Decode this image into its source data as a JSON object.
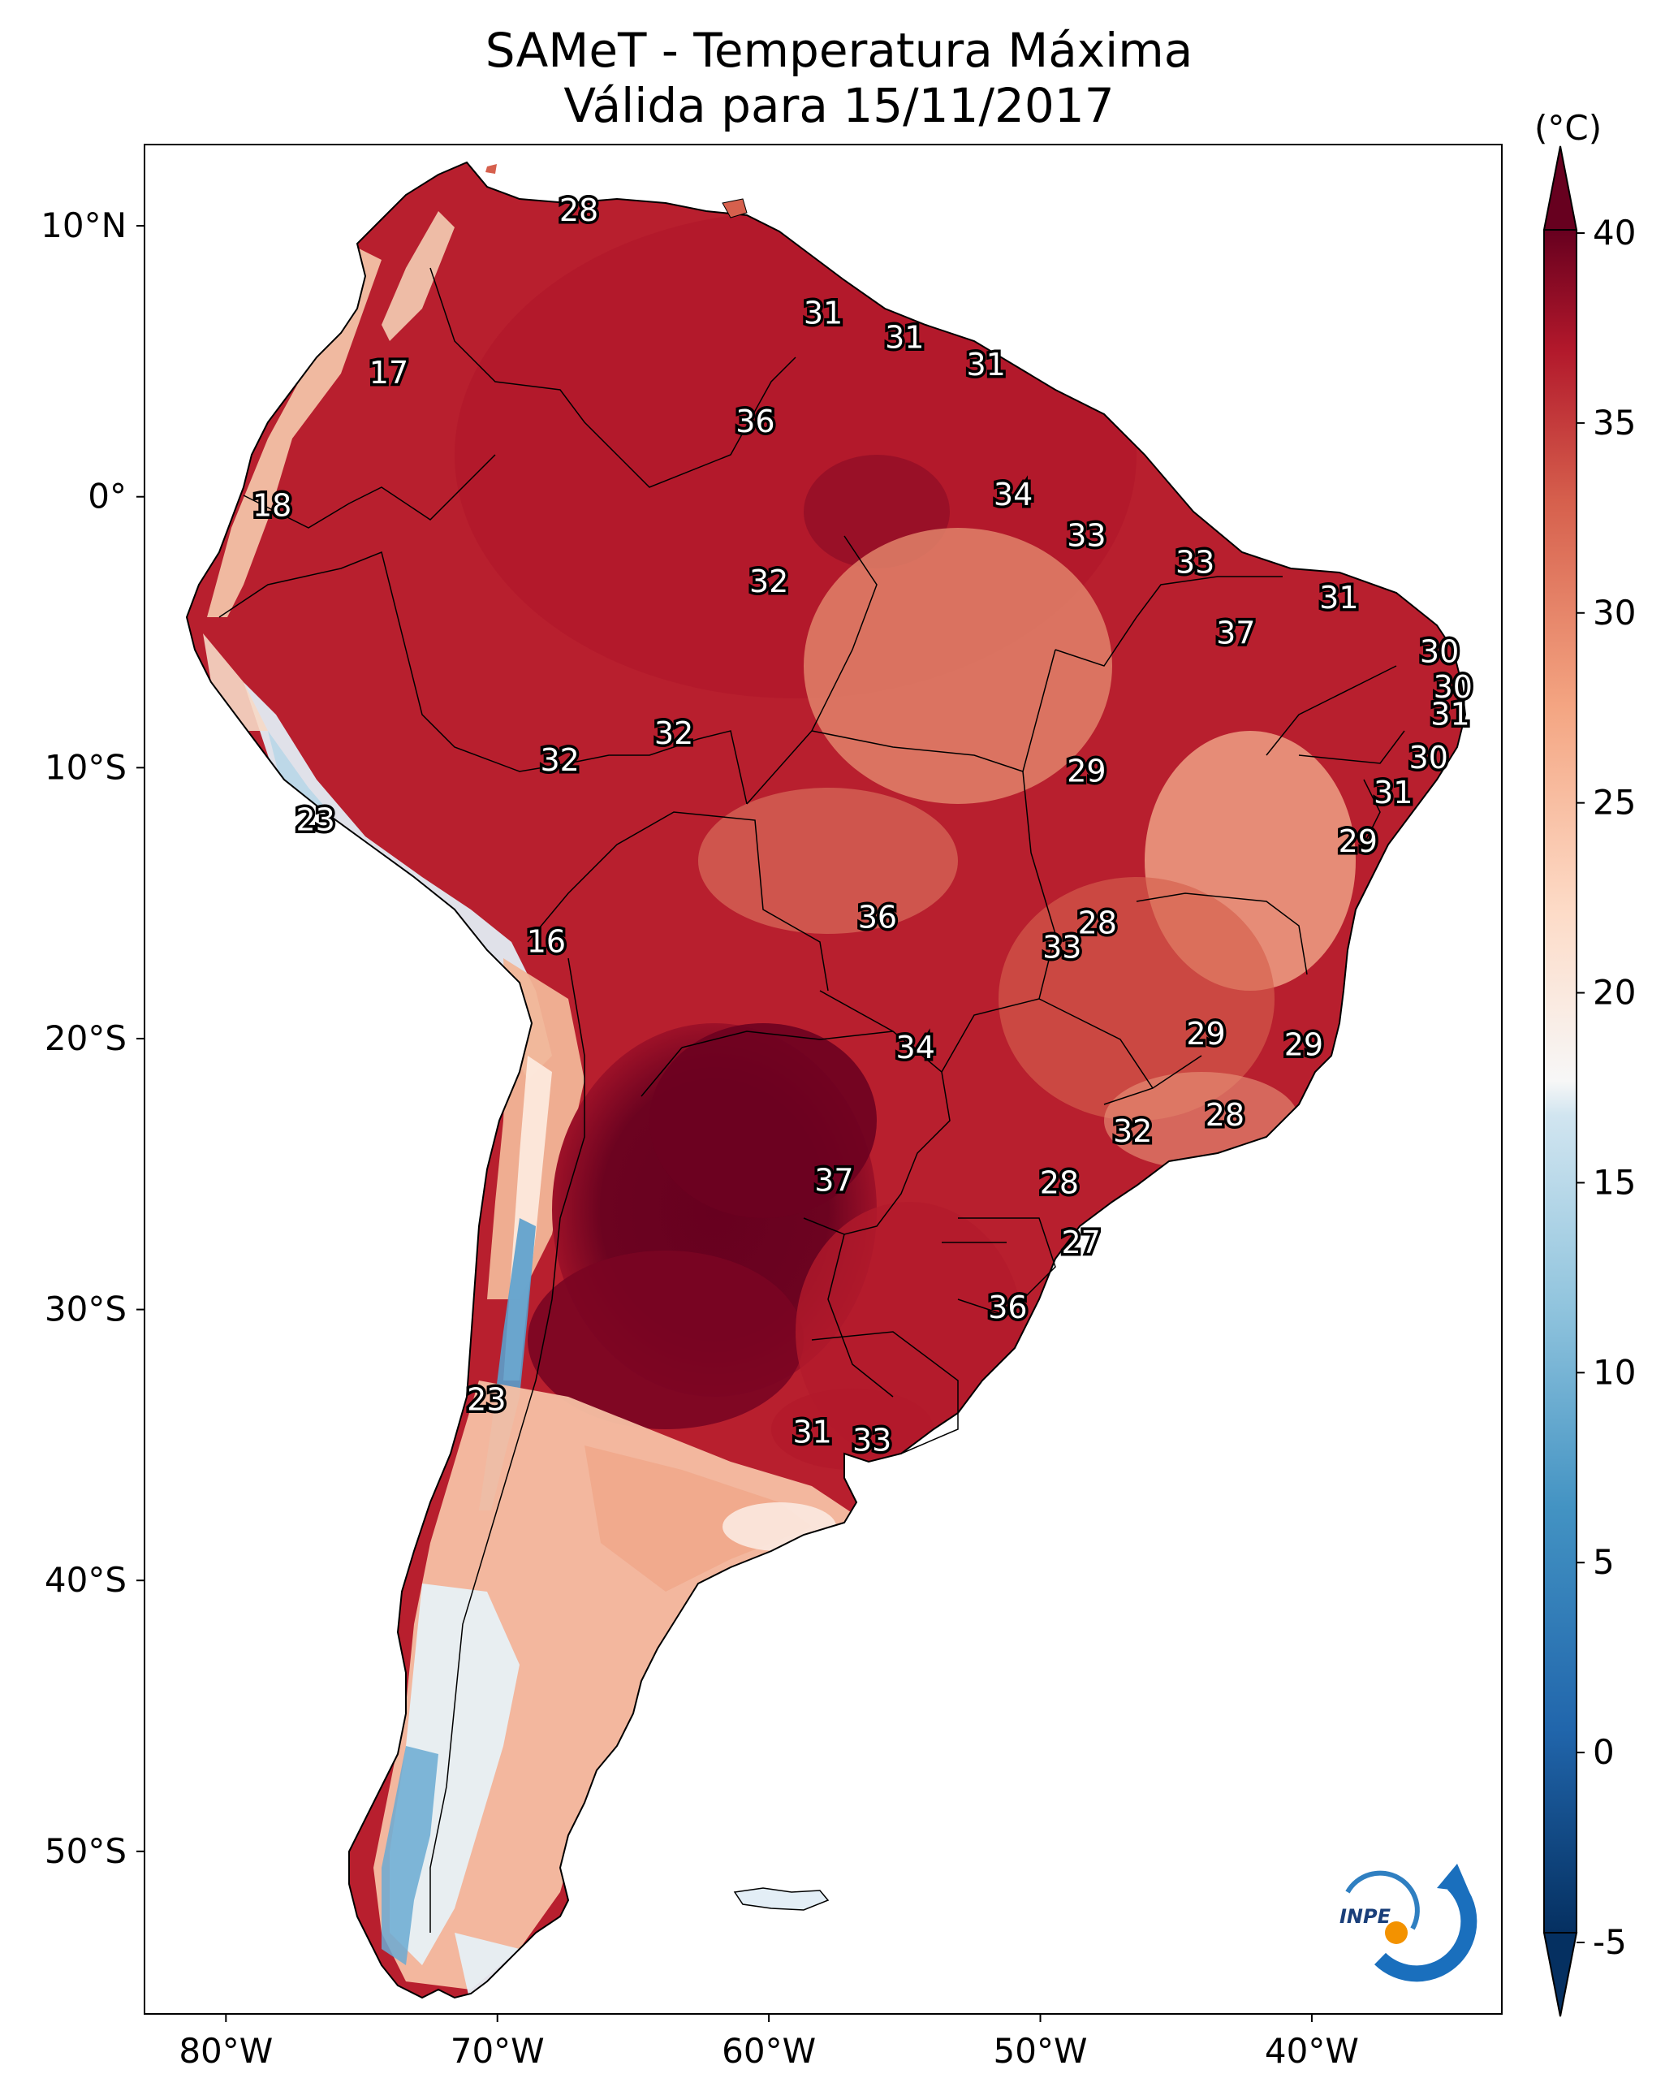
{
  "title": {
    "line1": "SAMeT - Temperatura Máxima",
    "line2": "Válida para 15/11/2017"
  },
  "axes": {
    "lon_ticks": [
      "80°W",
      "70°W",
      "60°W",
      "50°W",
      "40°W"
    ],
    "lat_ticks": [
      "10°N",
      "0°",
      "10°S",
      "20°S",
      "30°S",
      "40°S",
      "50°S"
    ],
    "lon_range": [
      -83,
      -33
    ],
    "lat_range": [
      -56,
      13
    ]
  },
  "colorbar": {
    "unit": "(°C)",
    "ticks": [
      "40",
      "35",
      "30",
      "25",
      "20",
      "15",
      "10",
      "5",
      "0",
      "-5"
    ],
    "range": [
      -5,
      40
    ],
    "colormap": "RdBu_r"
  },
  "colors": {
    "hot": "#67001f",
    "warm": "#b2182b",
    "mild": "#d6604d",
    "light": "#f4a582",
    "pale": "#fddbc7",
    "neutral": "#f7f7f7",
    "cool": "#d1e5f0",
    "cold": "#4393c3",
    "frozen": "#053061"
  },
  "logo": {
    "text": "INPE"
  },
  "station_labels": [
    {
      "value": "28",
      "lon": -67,
      "lat": 10.5
    },
    {
      "value": "17",
      "lon": -74,
      "lat": 4.5
    },
    {
      "value": "31",
      "lon": -58,
      "lat": 6.7
    },
    {
      "value": "31",
      "lon": -55,
      "lat": 5.8
    },
    {
      "value": "31",
      "lon": -52,
      "lat": 4.8
    },
    {
      "value": "36",
      "lon": -60.5,
      "lat": 2.7
    },
    {
      "value": "18",
      "lon": -78.3,
      "lat": -0.4
    },
    {
      "value": "34",
      "lon": -51,
      "lat": 0
    },
    {
      "value": "33",
      "lon": -48.3,
      "lat": -1.5
    },
    {
      "value": "32",
      "lon": -60,
      "lat": -3.2
    },
    {
      "value": "33",
      "lon": -44.3,
      "lat": -2.5
    },
    {
      "value": "31",
      "lon": -39,
      "lat": -3.8
    },
    {
      "value": "37",
      "lon": -42.8,
      "lat": -5.1
    },
    {
      "value": "30",
      "lon": -35.3,
      "lat": -5.8
    },
    {
      "value": "30",
      "lon": -34.8,
      "lat": -7.1
    },
    {
      "value": "31",
      "lon": -34.9,
      "lat": -8.1
    },
    {
      "value": "32",
      "lon": -63.5,
      "lat": -8.8
    },
    {
      "value": "32",
      "lon": -67.7,
      "lat": -9.8
    },
    {
      "value": "29",
      "lon": -48.3,
      "lat": -10.2
    },
    {
      "value": "30",
      "lon": -35.7,
      "lat": -9.7
    },
    {
      "value": "31",
      "lon": -37,
      "lat": -11
    },
    {
      "value": "23",
      "lon": -76.7,
      "lat": -12
    },
    {
      "value": "29",
      "lon": -38.3,
      "lat": -12.8
    },
    {
      "value": "36",
      "lon": -56,
      "lat": -15.6
    },
    {
      "value": "28",
      "lon": -47.9,
      "lat": -15.8
    },
    {
      "value": "33",
      "lon": -49.2,
      "lat": -16.7
    },
    {
      "value": "16",
      "lon": -68.2,
      "lat": -16.5
    },
    {
      "value": "29",
      "lon": -43.9,
      "lat": -19.9
    },
    {
      "value": "34",
      "lon": -54.6,
      "lat": -20.4
    },
    {
      "value": "29",
      "lon": -40.3,
      "lat": -20.3
    },
    {
      "value": "28",
      "lon": -43.2,
      "lat": -22.9
    },
    {
      "value": "32",
      "lon": -46.6,
      "lat": -23.5
    },
    {
      "value": "37",
      "lon": -57.6,
      "lat": -25.3
    },
    {
      "value": "28",
      "lon": -49.3,
      "lat": -25.4
    },
    {
      "value": "27",
      "lon": -48.5,
      "lat": -27.6
    },
    {
      "value": "36",
      "lon": -51.2,
      "lat": -30
    },
    {
      "value": "23",
      "lon": -70.4,
      "lat": -33.4
    },
    {
      "value": "31",
      "lon": -58.4,
      "lat": -34.6
    },
    {
      "value": "33",
      "lon": -56.2,
      "lat": -34.9
    }
  ]
}
